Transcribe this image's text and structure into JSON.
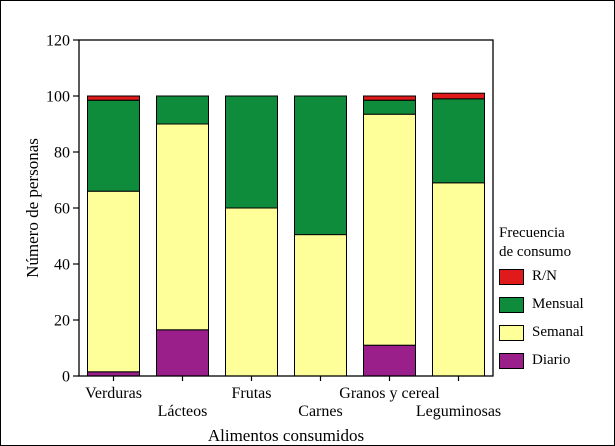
{
  "chart_data": {
    "type": "bar",
    "stacked": true,
    "xlabel": "Alimentos consumidos",
    "ylabel": "Número de personas",
    "ylim": [
      0,
      120
    ],
    "yticks": [
      0,
      20,
      40,
      60,
      80,
      100,
      120
    ],
    "grid": false,
    "legend_position": "right",
    "categories": [
      "Verduras",
      "Lácteos",
      "Frutas",
      "Carnes",
      "Granos y cereal",
      "Leguminosas"
    ],
    "series": [
      {
        "name": "Diario",
        "color": "#9b1f8a",
        "values": [
          1.5,
          16.5,
          0,
          0,
          11,
          0
        ]
      },
      {
        "name": "Semanal",
        "color": "#ffff99",
        "values": [
          64.5,
          73.5,
          60,
          50.5,
          82.5,
          69
        ]
      },
      {
        "name": "Mensual",
        "color": "#0e8c3c",
        "values": [
          32.5,
          10,
          40,
          49.5,
          5,
          30
        ]
      },
      {
        "name": "R/N",
        "color": "#e0191b",
        "values": [
          1.5,
          0,
          0,
          0,
          1.5,
          2
        ]
      }
    ]
  },
  "legend": {
    "title_line1": "Frecuencia",
    "title_line2": "de consumo",
    "items": [
      {
        "label": "R/N",
        "color": "#e0191b"
      },
      {
        "label": "Mensual",
        "color": "#0e8c3c"
      },
      {
        "label": "Semanal",
        "color": "#ffff99"
      },
      {
        "label": "Diario",
        "color": "#9b1f8a"
      }
    ]
  }
}
